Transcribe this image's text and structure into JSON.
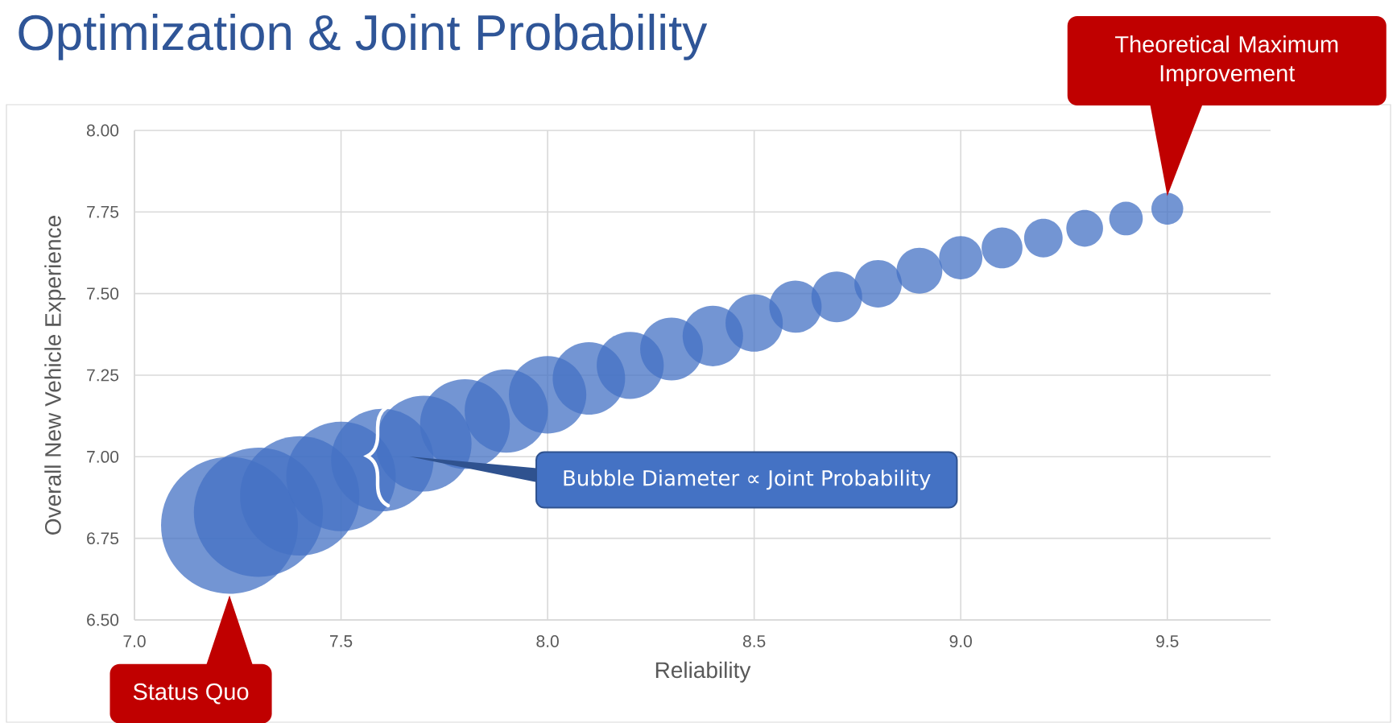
{
  "chart_data": {
    "type": "bubble",
    "title": "Optimization & Joint Probability",
    "xlabel": "Reliability",
    "ylabel": "Overall New Vehicle Experience",
    "x": [
      7.23,
      7.3,
      7.4,
      7.5,
      7.6,
      7.7,
      7.8,
      7.9,
      8.0,
      8.1,
      8.2,
      8.3,
      8.4,
      8.5,
      8.6,
      8.7,
      8.8,
      8.9,
      9.0,
      9.1,
      9.2,
      9.3,
      9.4,
      9.5
    ],
    "values": [
      6.79,
      6.83,
      6.88,
      6.94,
      6.99,
      7.04,
      7.1,
      7.14,
      7.19,
      7.24,
      7.28,
      7.33,
      7.37,
      7.41,
      7.46,
      7.49,
      7.53,
      7.57,
      7.61,
      7.64,
      7.67,
      7.7,
      7.73,
      7.76
    ],
    "sizes": [
      1,
      0.89,
      0.76,
      0.64,
      0.56,
      0.49,
      0.43,
      0.37,
      0.32,
      0.28,
      0.24,
      0.21,
      0.195,
      0.175,
      0.146,
      0.137,
      0.12,
      0.112,
      0.1,
      0.089,
      0.079,
      0.072,
      0.06,
      0.054
    ],
    "color": "#4472c4",
    "xlim": [
      7.0,
      9.75
    ],
    "ylim": [
      6.5,
      8.0
    ],
    "xticks": [
      {
        "value": 7.0,
        "label": "7.0"
      },
      {
        "value": 7.5,
        "label": "7.5"
      },
      {
        "value": 8.0,
        "label": "8.0"
      },
      {
        "value": 8.5,
        "label": "8.5"
      },
      {
        "value": 9.0,
        "label": "9.0"
      },
      {
        "value": 9.5,
        "label": "9.5"
      }
    ],
    "yticks": [
      {
        "value": 6.5,
        "label": "6.50"
      },
      {
        "value": 6.75,
        "label": "6.75"
      },
      {
        "value": 7.0,
        "label": "7.00"
      },
      {
        "value": 7.25,
        "label": "7.25"
      },
      {
        "value": 7.5,
        "label": "7.50"
      },
      {
        "value": 7.75,
        "label": "7.75"
      },
      {
        "value": 8.0,
        "label": "8.00"
      }
    ],
    "grid": true,
    "annotations": [
      "Theoretical Maximum Improvement",
      "Status Quo",
      "Bubble Diameter ∝ Joint Probability"
    ]
  }
}
